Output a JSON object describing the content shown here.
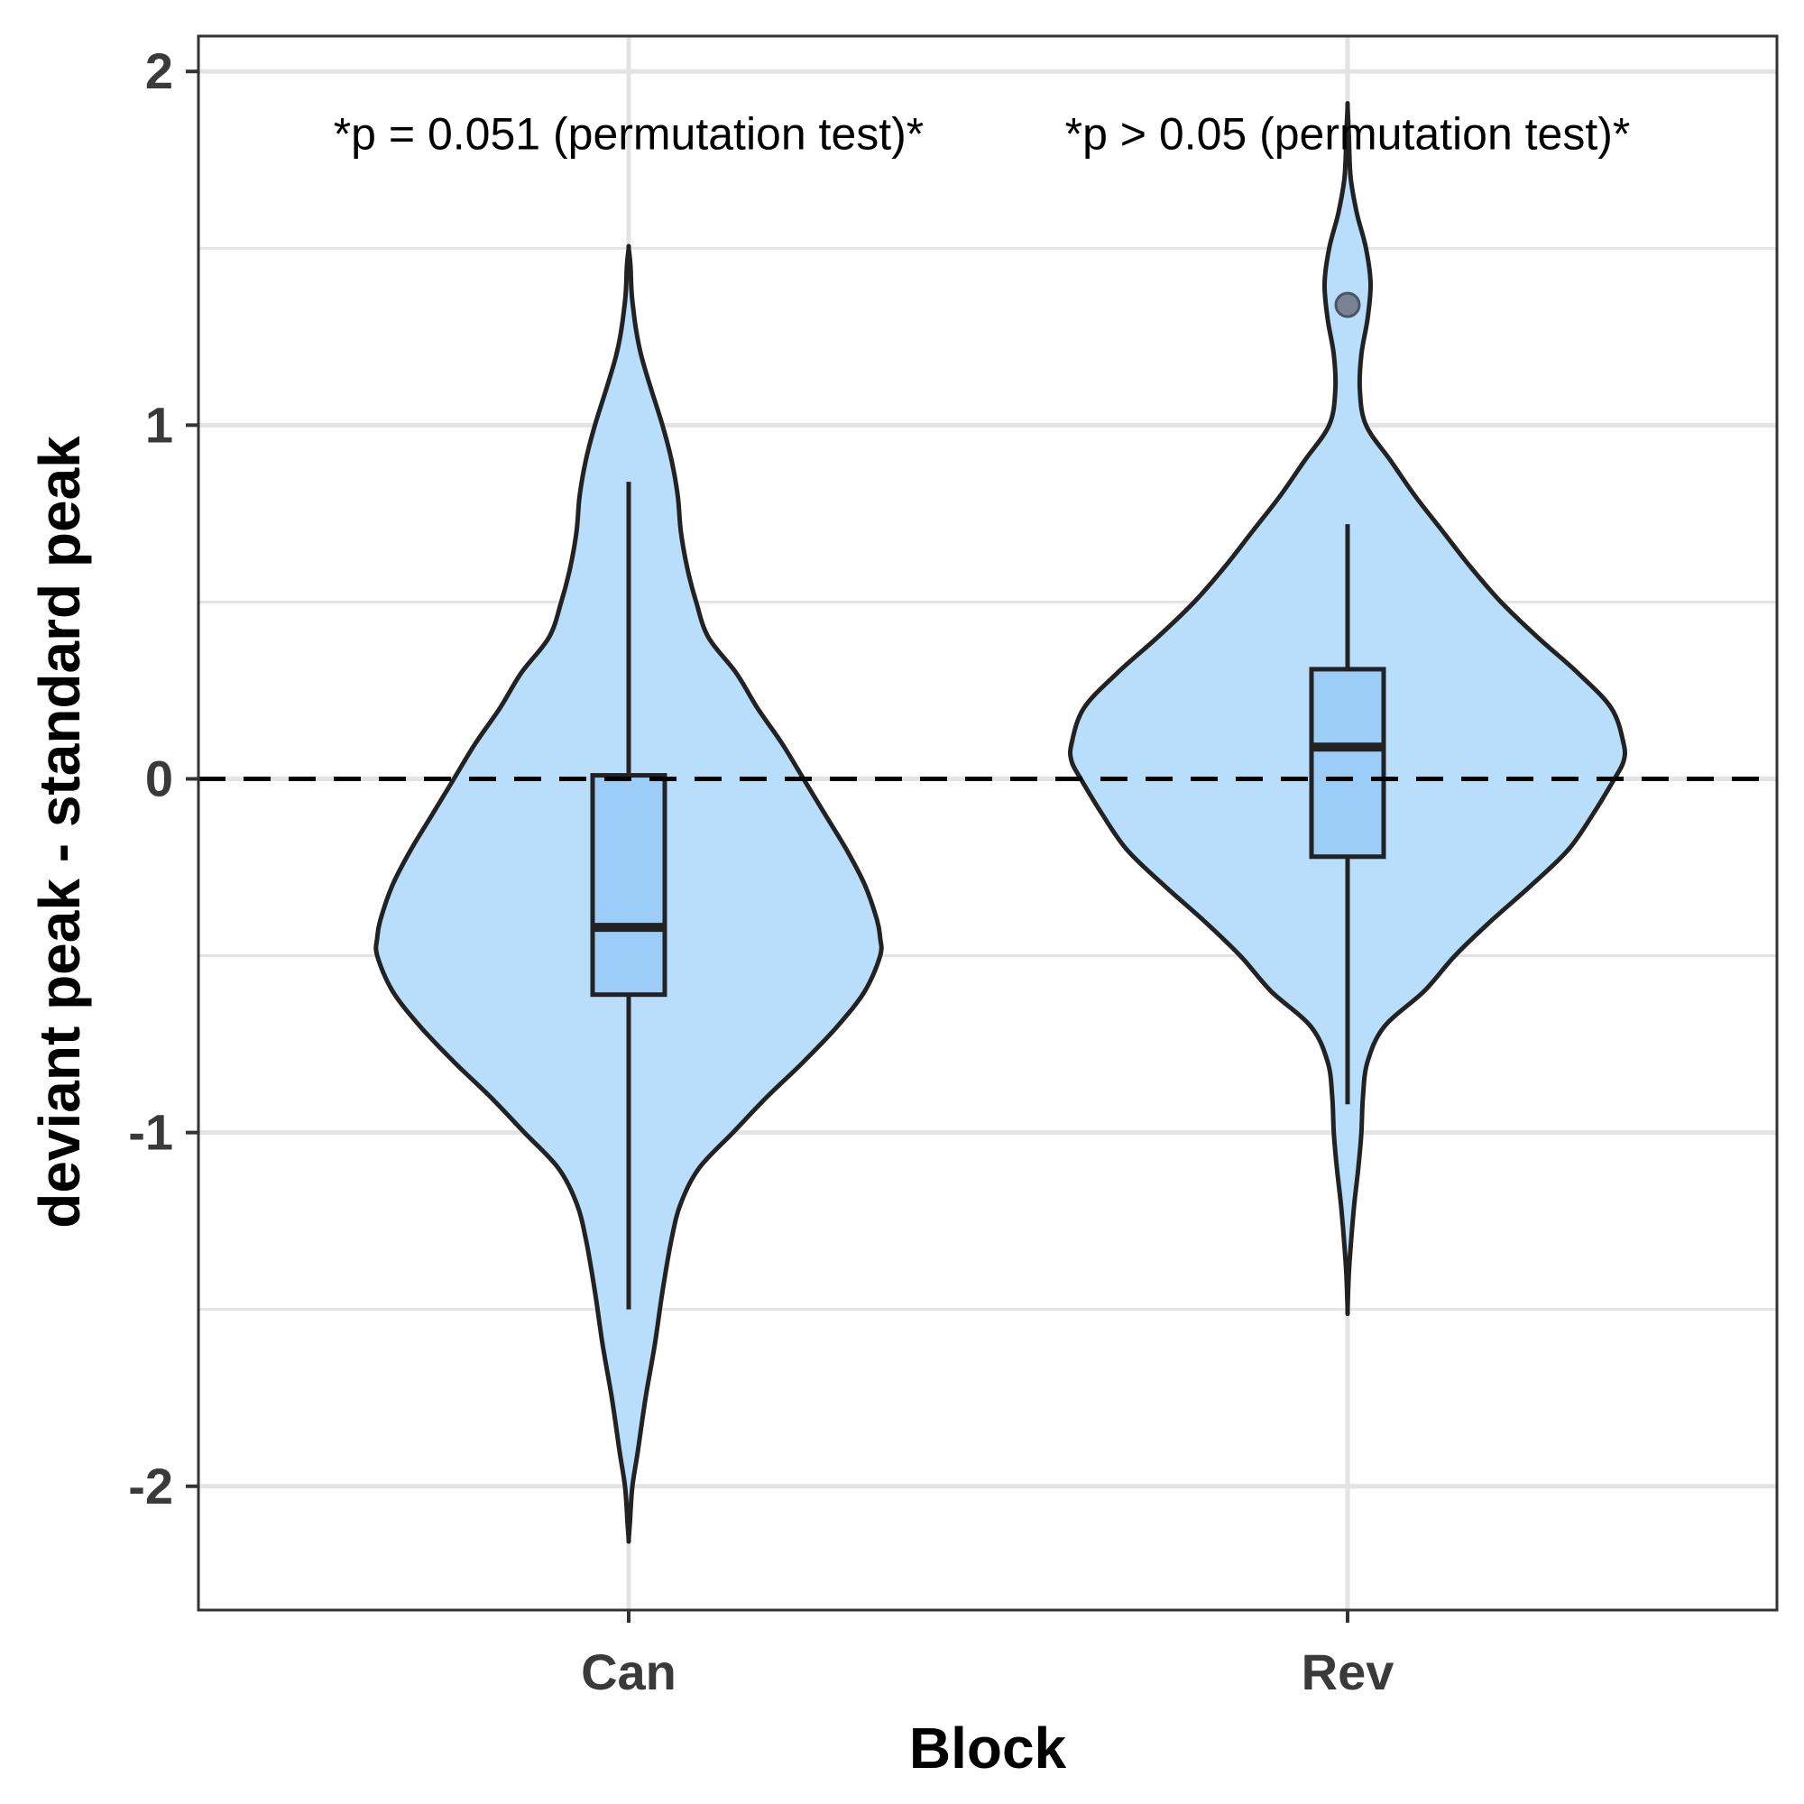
{
  "chart_data": {
    "type": "violin",
    "title": "",
    "xlabel": "Block",
    "ylabel": "deviant peak - standard peak",
    "categories": [
      "Can",
      "Rev"
    ],
    "ylim": [
      -2.35,
      2.1
    ],
    "y_ticks": [
      2,
      1,
      0,
      -1,
      -2
    ],
    "y_tick_labels": [
      "2",
      "1",
      "0",
      "-1",
      "-2"
    ],
    "grid": true,
    "reference_line": {
      "y": 0,
      "style": "dashed"
    },
    "annotations": [
      {
        "text": "*p = 0.051 (permutation test)*",
        "category": "Can",
        "y": 1.78
      },
      {
        "text": "*p > 0.05 (permutation test)*",
        "category": "Rev",
        "y": 1.78
      }
    ],
    "groups": [
      {
        "category": "Can",
        "box": {
          "whisker_low": -1.5,
          "q1": -0.61,
          "median": -0.42,
          "q3": 0.01,
          "whisker_high": 0.84
        },
        "outliers": [],
        "density": [
          [
            1.5,
            0.0
          ],
          [
            1.45,
            0.006
          ],
          [
            1.35,
            0.012
          ],
          [
            1.2,
            0.04
          ],
          [
            1.0,
            0.11
          ],
          [
            0.9,
            0.14
          ],
          [
            0.8,
            0.16
          ],
          [
            0.7,
            0.17
          ],
          [
            0.6,
            0.19
          ],
          [
            0.5,
            0.22
          ],
          [
            0.4,
            0.26
          ],
          [
            0.3,
            0.35
          ],
          [
            0.2,
            0.42
          ],
          [
            0.1,
            0.5
          ],
          [
            0.0,
            0.57
          ],
          [
            -0.1,
            0.64
          ],
          [
            -0.2,
            0.71
          ],
          [
            -0.3,
            0.77
          ],
          [
            -0.4,
            0.81
          ],
          [
            -0.45,
            0.82
          ],
          [
            -0.5,
            0.82
          ],
          [
            -0.6,
            0.77
          ],
          [
            -0.7,
            0.68
          ],
          [
            -0.8,
            0.57
          ],
          [
            -0.9,
            0.45
          ],
          [
            -1.0,
            0.34
          ],
          [
            -1.1,
            0.23
          ],
          [
            -1.2,
            0.17
          ],
          [
            -1.3,
            0.14
          ],
          [
            -1.45,
            0.11
          ],
          [
            -1.6,
            0.085
          ],
          [
            -1.75,
            0.055
          ],
          [
            -1.9,
            0.03
          ],
          [
            -2.0,
            0.012
          ],
          [
            -2.1,
            0.004
          ],
          [
            -2.15,
            0.0
          ]
        ]
      },
      {
        "category": "Rev",
        "box": {
          "whisker_low": -0.92,
          "q1": -0.22,
          "median": 0.09,
          "q3": 0.31,
          "whisker_high": 0.72
        },
        "outliers": [
          1.34
        ],
        "density": [
          [
            1.9,
            0.0
          ],
          [
            1.82,
            0.004
          ],
          [
            1.7,
            0.01
          ],
          [
            1.6,
            0.03
          ],
          [
            1.5,
            0.06
          ],
          [
            1.4,
            0.075
          ],
          [
            1.3,
            0.065
          ],
          [
            1.2,
            0.045
          ],
          [
            1.1,
            0.04
          ],
          [
            1.0,
            0.06
          ],
          [
            0.9,
            0.14
          ],
          [
            0.8,
            0.22
          ],
          [
            0.7,
            0.31
          ],
          [
            0.6,
            0.4
          ],
          [
            0.5,
            0.5
          ],
          [
            0.4,
            0.62
          ],
          [
            0.3,
            0.75
          ],
          [
            0.2,
            0.86
          ],
          [
            0.1,
            0.9
          ],
          [
            0.05,
            0.9
          ],
          [
            0.0,
            0.87
          ],
          [
            -0.1,
            0.8
          ],
          [
            -0.2,
            0.72
          ],
          [
            -0.3,
            0.6
          ],
          [
            -0.4,
            0.47
          ],
          [
            -0.5,
            0.35
          ],
          [
            -0.6,
            0.25
          ],
          [
            -0.7,
            0.12
          ],
          [
            -0.8,
            0.065
          ],
          [
            -0.9,
            0.05
          ],
          [
            -1.0,
            0.045
          ],
          [
            -1.1,
            0.035
          ],
          [
            -1.2,
            0.022
          ],
          [
            -1.3,
            0.012
          ],
          [
            -1.4,
            0.004
          ],
          [
            -1.5,
            0.0
          ]
        ]
      }
    ],
    "colors": {
      "violin_fill": "#b9defc",
      "box_fill": "#9ccdf9",
      "outline": "#222222",
      "outlier": "#6b7280",
      "grid": "#e3e3e3",
      "panel_border": "#333333",
      "zero_line": "#000000"
    }
  }
}
